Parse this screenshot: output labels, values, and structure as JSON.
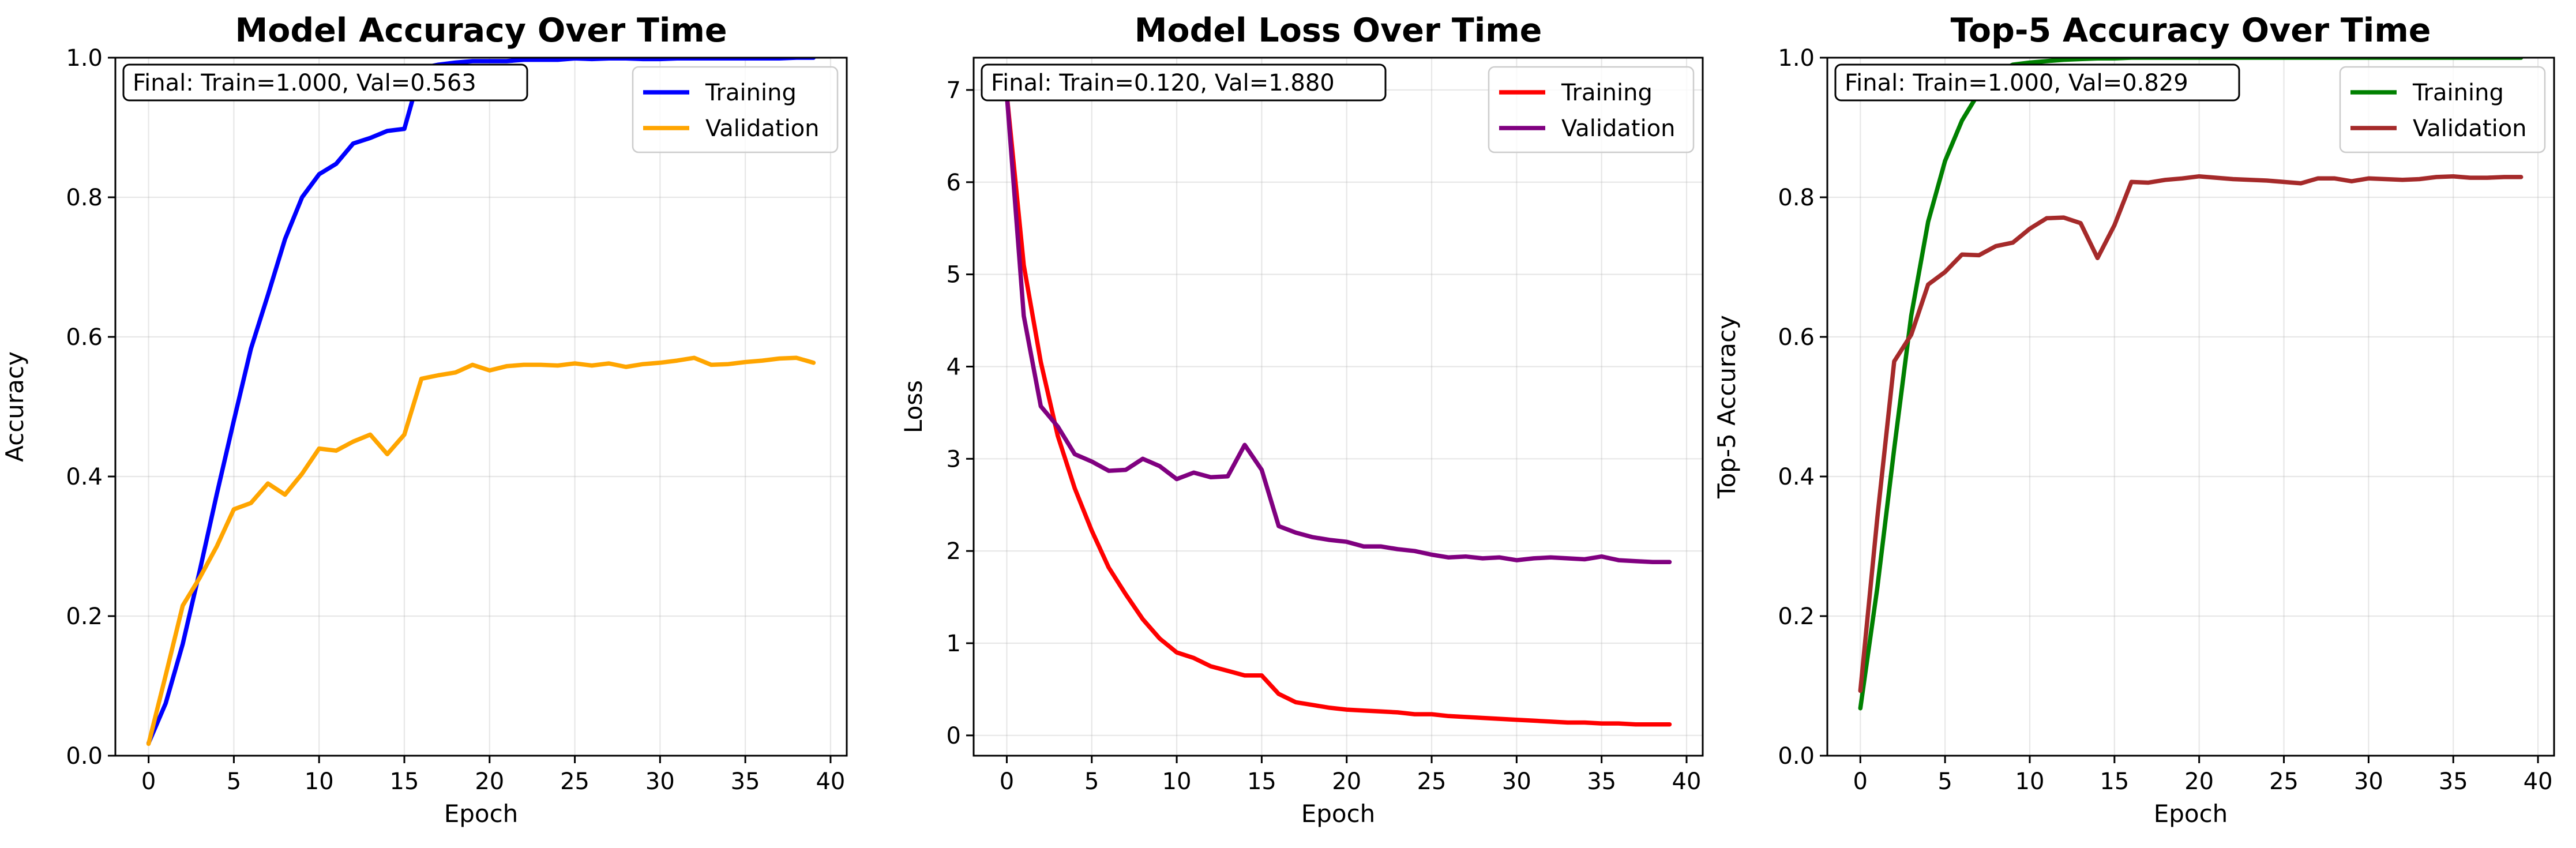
{
  "chart_data": [
    {
      "type": "line",
      "title": "Model Accuracy Over Time",
      "xlabel": "Epoch",
      "ylabel": "Accuracy",
      "xlim": [
        -1.95,
        40.95
      ],
      "ylim": [
        0.0,
        1.0
      ],
      "xticks": [
        0,
        5,
        10,
        15,
        20,
        25,
        30,
        35,
        40
      ],
      "yticks": [
        0.0,
        0.2,
        0.4,
        0.6,
        0.8,
        1.0
      ],
      "ytick_labels": [
        "0.0",
        "0.2",
        "0.4",
        "0.6",
        "0.8",
        "1.0"
      ],
      "grid": true,
      "legend_position": "top-right",
      "annotation": "Final: Train=1.000, Val=0.563",
      "series": [
        {
          "name": "Training",
          "color": "#0000ff",
          "values": [
            0.018,
            0.075,
            0.16,
            0.265,
            0.375,
            0.48,
            0.583,
            0.66,
            0.74,
            0.8,
            0.833,
            0.848,
            0.877,
            0.885,
            0.895,
            0.898,
            0.985,
            0.99,
            0.993,
            0.995,
            0.995,
            0.995,
            0.997,
            0.997,
            0.997,
            0.999,
            0.998,
            0.999,
            0.999,
            0.998,
            0.998,
            0.999,
            0.999,
            0.999,
            0.999,
            0.999,
            0.999,
            0.999,
            1.0,
            1.0
          ]
        },
        {
          "name": "Validation",
          "color": "#ffa500",
          "values": [
            0.017,
            0.115,
            0.215,
            0.255,
            0.3,
            0.353,
            0.362,
            0.39,
            0.374,
            0.404,
            0.44,
            0.437,
            0.45,
            0.46,
            0.432,
            0.46,
            0.54,
            0.545,
            0.549,
            0.56,
            0.552,
            0.558,
            0.56,
            0.56,
            0.559,
            0.562,
            0.559,
            0.562,
            0.557,
            0.561,
            0.563,
            0.566,
            0.57,
            0.56,
            0.561,
            0.564,
            0.566,
            0.569,
            0.57,
            0.563
          ]
        }
      ]
    },
    {
      "type": "line",
      "title": "Model Loss Over Time",
      "xlabel": "Epoch",
      "ylabel": "Loss",
      "xlim": [
        -1.95,
        40.95
      ],
      "ylim": [
        -0.22,
        7.35
      ],
      "xticks": [
        0,
        5,
        10,
        15,
        20,
        25,
        30,
        35,
        40
      ],
      "yticks": [
        0,
        1,
        2,
        3,
        4,
        5,
        6,
        7
      ],
      "ytick_labels": [
        "0",
        "1",
        "2",
        "3",
        "4",
        "5",
        "6",
        "7"
      ],
      "grid": true,
      "legend_position": "top-right",
      "annotation": "Final: Train=0.120, Val=1.880",
      "series": [
        {
          "name": "Training",
          "color": "#ff0000",
          "values": [
            6.95,
            5.1,
            4.05,
            3.25,
            2.68,
            2.22,
            1.82,
            1.53,
            1.26,
            1.05,
            0.9,
            0.84,
            0.75,
            0.7,
            0.65,
            0.65,
            0.45,
            0.36,
            0.33,
            0.3,
            0.28,
            0.27,
            0.26,
            0.25,
            0.23,
            0.23,
            0.21,
            0.2,
            0.19,
            0.18,
            0.17,
            0.16,
            0.15,
            0.14,
            0.14,
            0.13,
            0.13,
            0.12,
            0.12,
            0.12
          ]
        },
        {
          "name": "Validation",
          "color": "#800080",
          "values": [
            6.95,
            4.55,
            3.57,
            3.35,
            3.05,
            2.97,
            2.87,
            2.88,
            3.0,
            2.92,
            2.78,
            2.85,
            2.8,
            2.81,
            3.15,
            2.88,
            2.27,
            2.2,
            2.15,
            2.12,
            2.1,
            2.05,
            2.05,
            2.02,
            2.0,
            1.96,
            1.93,
            1.94,
            1.92,
            1.93,
            1.9,
            1.92,
            1.93,
            1.92,
            1.91,
            1.94,
            1.9,
            1.89,
            1.88,
            1.88
          ]
        }
      ]
    },
    {
      "type": "line",
      "title": "Top-5 Accuracy Over Time",
      "xlabel": "Epoch",
      "ylabel": "Top-5 Accuracy",
      "xlim": [
        -1.95,
        40.95
      ],
      "ylim": [
        0.0,
        1.0
      ],
      "xticks": [
        0,
        5,
        10,
        15,
        20,
        25,
        30,
        35,
        40
      ],
      "yticks": [
        0.0,
        0.2,
        0.4,
        0.6,
        0.8,
        1.0
      ],
      "ytick_labels": [
        "0.0",
        "0.2",
        "0.4",
        "0.6",
        "0.8",
        "1.0"
      ],
      "grid": true,
      "legend_position": "top-right",
      "annotation": "Final: Train=1.000, Val=0.829",
      "series": [
        {
          "name": "Training",
          "color": "#008000",
          "values": [
            0.068,
            0.24,
            0.44,
            0.63,
            0.765,
            0.852,
            0.91,
            0.95,
            0.978,
            0.99,
            0.993,
            0.995,
            0.997,
            0.998,
            0.999,
            0.999,
            1.0,
            1.0,
            1.0,
            1.0,
            1.0,
            1.0,
            1.0,
            1.0,
            1.0,
            1.0,
            1.0,
            1.0,
            1.0,
            1.0,
            1.0,
            1.0,
            1.0,
            1.0,
            1.0,
            1.0,
            1.0,
            1.0,
            1.0,
            1.0
          ]
        },
        {
          "name": "Validation",
          "color": "#a52a2a",
          "values": [
            0.093,
            0.34,
            0.565,
            0.603,
            0.675,
            0.693,
            0.718,
            0.717,
            0.73,
            0.735,
            0.755,
            0.77,
            0.771,
            0.763,
            0.713,
            0.76,
            0.822,
            0.821,
            0.825,
            0.827,
            0.83,
            0.828,
            0.826,
            0.825,
            0.824,
            0.822,
            0.82,
            0.827,
            0.827,
            0.823,
            0.827,
            0.826,
            0.825,
            0.826,
            0.829,
            0.83,
            0.828,
            0.828,
            0.829,
            0.829
          ]
        }
      ]
    }
  ]
}
